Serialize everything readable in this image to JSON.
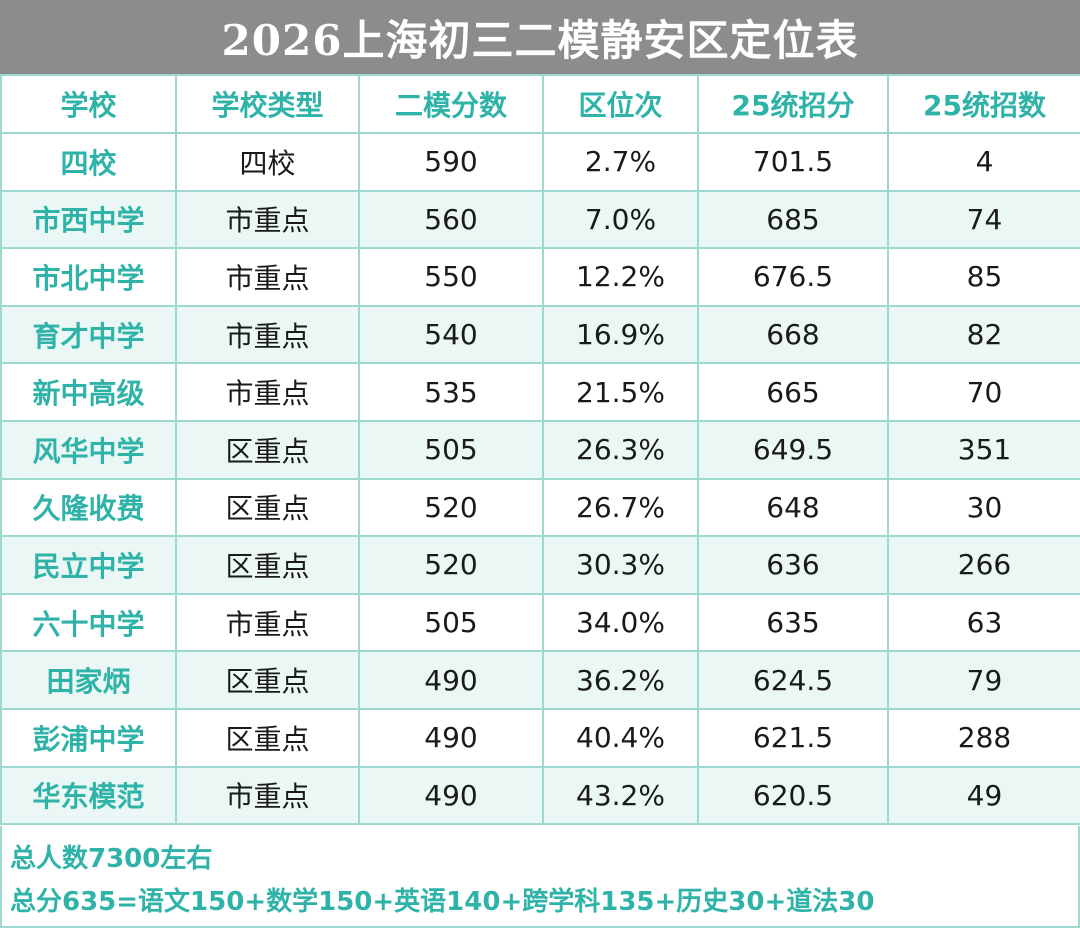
{
  "title": "2026上海初三二模静安区定位表",
  "colors": {
    "accent": "#2fb3a8",
    "title_bg": "#8c8c8c",
    "stripe": "#eaf7f5",
    "grid": "#9ed9d0"
  },
  "table": {
    "headers": [
      "学校",
      "学校类型",
      "二模分数",
      "区位次",
      "25统招分",
      "25统招数"
    ],
    "rows": [
      [
        "四校",
        "四校",
        "590",
        "2.7%",
        "701.5",
        "4"
      ],
      [
        "市西中学",
        "市重点",
        "560",
        "7.0%",
        "685",
        "74"
      ],
      [
        "市北中学",
        "市重点",
        "550",
        "12.2%",
        "676.5",
        "85"
      ],
      [
        "育才中学",
        "市重点",
        "540",
        "16.9%",
        "668",
        "82"
      ],
      [
        "新中高级",
        "市重点",
        "535",
        "21.5%",
        "665",
        "70"
      ],
      [
        "风华中学",
        "区重点",
        "505",
        "26.3%",
        "649.5",
        "351"
      ],
      [
        "久隆收费",
        "区重点",
        "520",
        "26.7%",
        "648",
        "30"
      ],
      [
        "民立中学",
        "区重点",
        "520",
        "30.3%",
        "636",
        "266"
      ],
      [
        "六十中学",
        "市重点",
        "505",
        "34.0%",
        "635",
        "63"
      ],
      [
        "田家炳",
        "区重点",
        "490",
        "36.2%",
        "624.5",
        "79"
      ],
      [
        "彭浦中学",
        "区重点",
        "490",
        "40.4%",
        "621.5",
        "288"
      ],
      [
        "华东模范",
        "市重点",
        "490",
        "43.2%",
        "620.5",
        "49"
      ]
    ]
  },
  "footer": {
    "total": "总人数7300左右",
    "formula": "总分635=语文150+数学150+英语140+跨学科135+历史30+道法30"
  }
}
